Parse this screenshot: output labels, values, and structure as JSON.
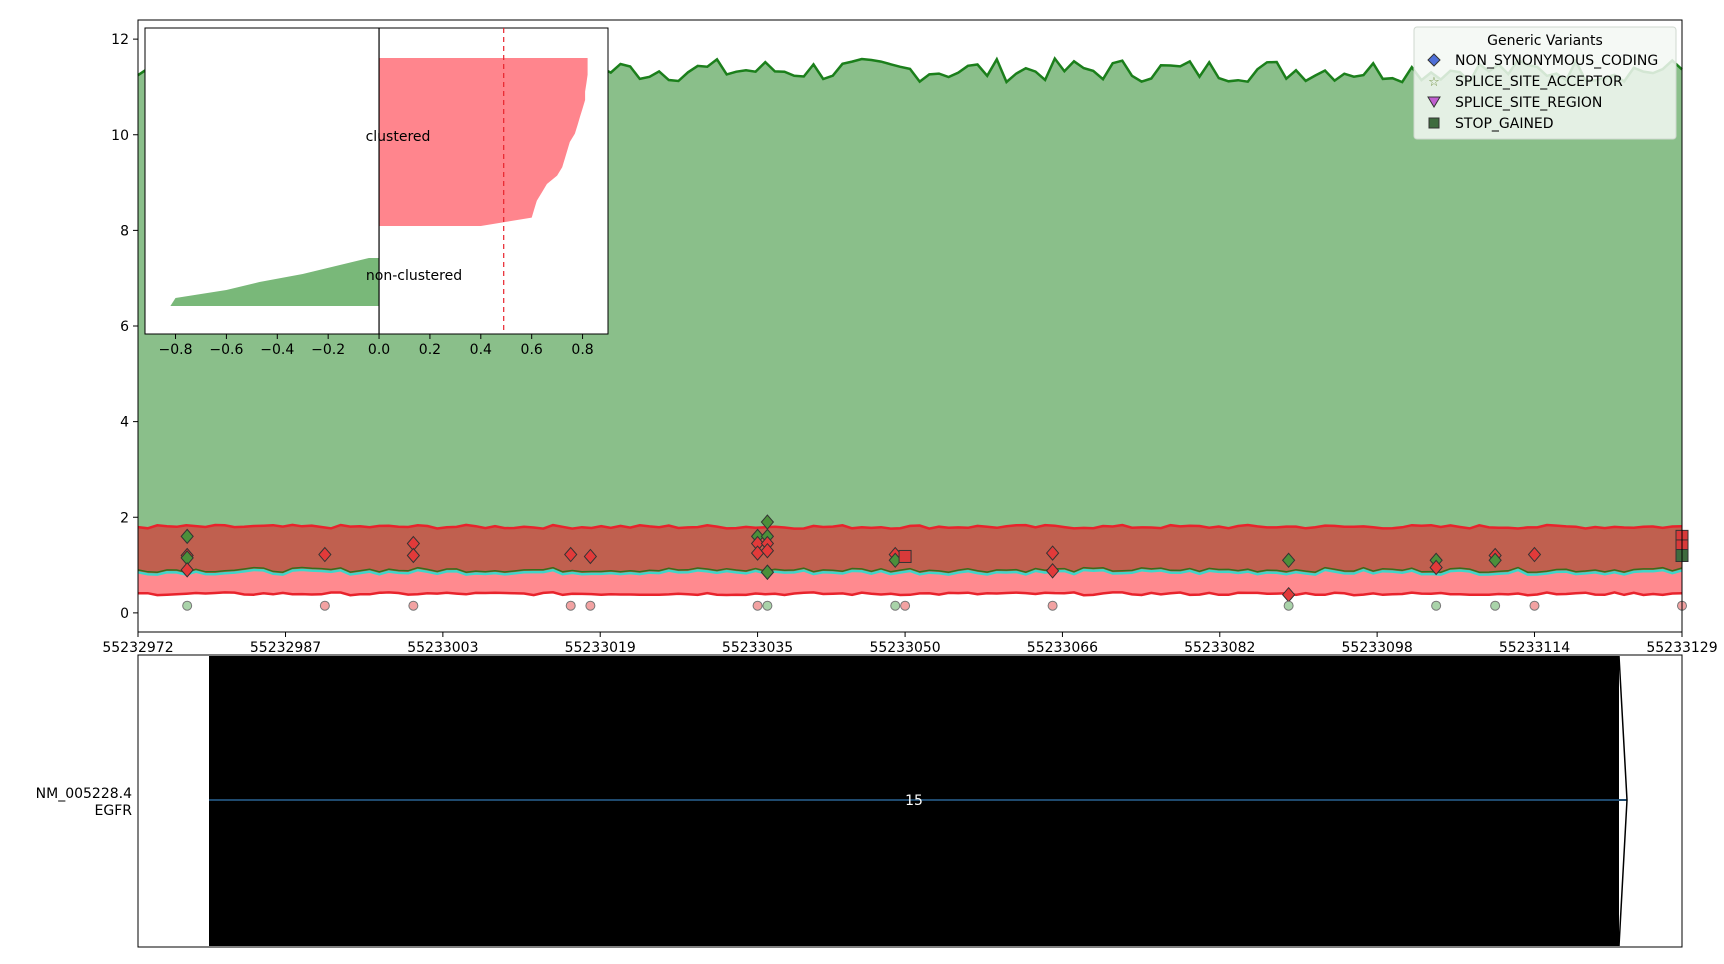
{
  "chart_data": [
    {
      "type": "area",
      "panel": "main",
      "x_range": [
        55232972,
        55233129
      ],
      "ylim": [
        -0.4,
        12.4
      ],
      "x_ticks": [
        55232972,
        55232987,
        55233003,
        55233019,
        55233035,
        55233050,
        55233066,
        55233082,
        55233098,
        55233114,
        55233129
      ],
      "y_ticks": [
        0,
        2,
        4,
        6,
        8,
        10,
        12
      ],
      "grid": false,
      "legend": {
        "title": "Generic Variants",
        "placement": "top-right",
        "entries": [
          {
            "label": "NON_SYNONYMOUS_CODING",
            "marker": "diamond",
            "color": "#4e6fd8"
          },
          {
            "label": "SPLICE_SITE_ACCEPTOR",
            "marker": "star",
            "color": "#6f8f3f"
          },
          {
            "label": "SPLICE_SITE_REGION",
            "marker": "triangle-down",
            "color": "#c05fd0"
          },
          {
            "label": "STOP_GAINED",
            "marker": "square",
            "color": "#3e6b3e"
          }
        ]
      },
      "bands": {
        "green_upper": {
          "color": "#1b7f1b",
          "fill": "#8abf8a",
          "mean": 11.35
        },
        "red_upper": {
          "color": "#e8232c",
          "mean": 1.8
        },
        "cyan_mid": {
          "color": "#3fd6c9",
          "mean": 0.85
        },
        "red_lower": {
          "color": "#e8232c",
          "fill": "#ff8a8f",
          "mean": 0.4
        }
      },
      "variants": [
        {
          "x": 55232977,
          "y": 1.6,
          "cls": "green"
        },
        {
          "x": 55232977,
          "y": 1.2,
          "cls": "red"
        },
        {
          "x": 55232977,
          "y": 1.15,
          "cls": "green"
        },
        {
          "x": 55232977,
          "y": 0.9,
          "cls": "red"
        },
        {
          "x": 55232991,
          "y": 1.22,
          "cls": "red"
        },
        {
          "x": 55233000,
          "y": 1.45,
          "cls": "red"
        },
        {
          "x": 55233000,
          "y": 1.2,
          "cls": "red"
        },
        {
          "x": 55233016,
          "y": 1.22,
          "cls": "red"
        },
        {
          "x": 55233018,
          "y": 1.18,
          "cls": "red"
        },
        {
          "x": 55233035,
          "y": 1.6,
          "cls": "green"
        },
        {
          "x": 55233035,
          "y": 1.45,
          "cls": "red"
        },
        {
          "x": 55233035,
          "y": 1.25,
          "cls": "red"
        },
        {
          "x": 55233036,
          "y": 1.9,
          "cls": "green"
        },
        {
          "x": 55233036,
          "y": 1.6,
          "cls": "green"
        },
        {
          "x": 55233036,
          "y": 1.45,
          "cls": "red"
        },
        {
          "x": 55233036,
          "y": 1.3,
          "cls": "red"
        },
        {
          "x": 55233036,
          "y": 0.85,
          "cls": "red"
        },
        {
          "x": 55233036,
          "y": 0.85,
          "cls": "green"
        },
        {
          "x": 55233049,
          "y": 1.22,
          "cls": "red"
        },
        {
          "x": 55233049,
          "y": 1.1,
          "cls": "green"
        },
        {
          "x": 55233050,
          "y": 1.18,
          "cls": "red-square"
        },
        {
          "x": 55233065,
          "y": 1.25,
          "cls": "red"
        },
        {
          "x": 55233065,
          "y": 0.88,
          "cls": "red"
        },
        {
          "x": 55233089,
          "y": 1.1,
          "cls": "green"
        },
        {
          "x": 55233089,
          "y": 0.38,
          "cls": "red"
        },
        {
          "x": 55233104,
          "y": 1.1,
          "cls": "green"
        },
        {
          "x": 55233104,
          "y": 0.95,
          "cls": "red"
        },
        {
          "x": 55233110,
          "y": 1.2,
          "cls": "red"
        },
        {
          "x": 55233110,
          "y": 1.1,
          "cls": "green"
        },
        {
          "x": 55233114,
          "y": 1.22,
          "cls": "red"
        },
        {
          "x": 55233129,
          "y": 1.6,
          "cls": "red-square"
        },
        {
          "x": 55233129,
          "y": 1.4,
          "cls": "red-square"
        },
        {
          "x": 55233129,
          "y": 1.2,
          "cls": "green-square"
        }
      ],
      "baseline_points": [
        {
          "x": 55232977,
          "cls": "green"
        },
        {
          "x": 55232991,
          "cls": "red"
        },
        {
          "x": 55233000,
          "cls": "red"
        },
        {
          "x": 55233016,
          "cls": "red"
        },
        {
          "x": 55233018,
          "cls": "red"
        },
        {
          "x": 55233035,
          "cls": "red"
        },
        {
          "x": 55233036,
          "cls": "green"
        },
        {
          "x": 55233049,
          "cls": "green"
        },
        {
          "x": 55233050,
          "cls": "red"
        },
        {
          "x": 55233065,
          "cls": "red"
        },
        {
          "x": 55233089,
          "cls": "green"
        },
        {
          "x": 55233104,
          "cls": "green"
        },
        {
          "x": 55233110,
          "cls": "green"
        },
        {
          "x": 55233114,
          "cls": "red"
        },
        {
          "x": 55233129,
          "cls": "red"
        }
      ]
    },
    {
      "type": "area",
      "panel": "inset",
      "xlim": [
        -0.92,
        0.9
      ],
      "x_ticks": [
        -0.8,
        -0.6,
        -0.4,
        -0.2,
        0.0,
        0.2,
        0.4,
        0.6,
        0.8
      ],
      "tick_labels": [
        "−0.8",
        "−0.6",
        "−0.4",
        "−0.2",
        "0.0",
        "0.2",
        "0.4",
        "0.6",
        "0.8"
      ],
      "threshold": 0.49,
      "labels": [
        "clustered",
        "non-clustered"
      ],
      "clustered_profile": [
        0.82,
        0.82,
        0.82,
        0.815,
        0.81,
        0.81,
        0.8,
        0.79,
        0.78,
        0.77,
        0.75,
        0.74,
        0.73,
        0.72,
        0.7,
        0.66,
        0.64,
        0.62,
        0.61,
        0.6,
        0.4
      ],
      "nonclustered_profile": [
        -0.04,
        -0.17,
        -0.3,
        -0.47,
        -0.6,
        -0.8,
        -0.82
      ]
    },
    {
      "type": "table",
      "panel": "transcript",
      "transcript_id": "NM_005228.4",
      "gene": "EGFR",
      "exon_number": "15",
      "exon_range": [
        55232972,
        55233129
      ]
    }
  ]
}
